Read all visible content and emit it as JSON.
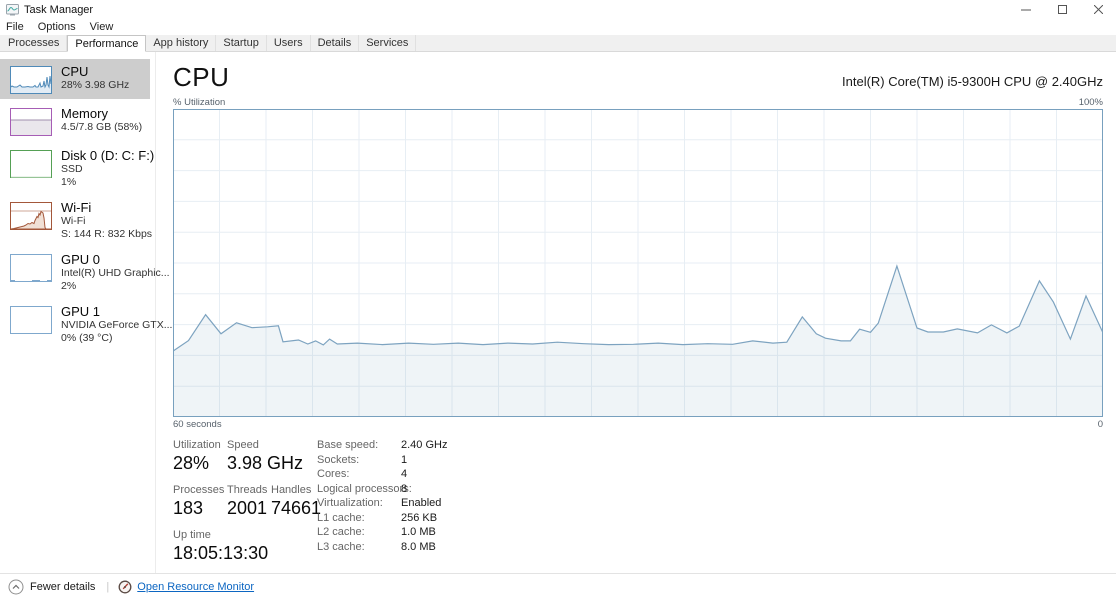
{
  "window": {
    "title": "Task Manager",
    "controls": {
      "minimize": "minimize",
      "maximize": "maximize",
      "close": "close"
    }
  },
  "menu": {
    "items": [
      {
        "label": "File"
      },
      {
        "label": "Options"
      },
      {
        "label": "View"
      }
    ]
  },
  "tabs": {
    "active": "Performance",
    "items": [
      {
        "label": "Processes"
      },
      {
        "label": "Performance"
      },
      {
        "label": "App history"
      },
      {
        "label": "Startup"
      },
      {
        "label": "Users"
      },
      {
        "label": "Details"
      },
      {
        "label": "Services"
      }
    ]
  },
  "sidebar": {
    "items": [
      {
        "title": "CPU",
        "lines": [
          "28% 3.98 GHz"
        ],
        "color": "#4f8ab8",
        "selected": true
      },
      {
        "title": "Memory",
        "lines": [
          "4.5/7.8 GB (58%)"
        ],
        "color": "#a65db5",
        "selected": false
      },
      {
        "title": "Disk 0 (D: C: F:)",
        "lines": [
          "SSD",
          "1%"
        ],
        "color": "#55a055",
        "selected": false
      },
      {
        "title": "Wi-Fi",
        "lines": [
          "Wi-Fi",
          "S: 144 R: 832 Kbps"
        ],
        "color": "#a3573a",
        "selected": false
      },
      {
        "title": "GPU 0",
        "lines": [
          "Intel(R) UHD Graphic...",
          "2%"
        ],
        "color": "#7fa8cd",
        "selected": false
      },
      {
        "title": "GPU 1",
        "lines": [
          "NVIDIA GeForce GTX...",
          "0% (39 °C)"
        ],
        "color": "#7fa8cd",
        "selected": false
      }
    ]
  },
  "main": {
    "title": "CPU",
    "processor": "Intel(R) Core(TM) i5-9300H CPU @ 2.40GHz",
    "y_label": "% Utilization",
    "y_max_label": "100%",
    "x_left_label": "60 seconds",
    "x_right_label": "0"
  },
  "stats": {
    "left": [
      {
        "label": "Utilization",
        "value": "28%"
      },
      {
        "label": "Speed",
        "value": "3.98 GHz"
      },
      {
        "label": "Processes",
        "value": "183"
      },
      {
        "label": "Threads",
        "value": "2001"
      },
      {
        "label": "Handles",
        "value": "74661"
      },
      {
        "label": "Up time",
        "value": "18:05:13:30"
      }
    ],
    "details": [
      {
        "label": "Base speed:",
        "value": "2.40 GHz"
      },
      {
        "label": "Sockets:",
        "value": "1"
      },
      {
        "label": "Cores:",
        "value": "4"
      },
      {
        "label": "Logical processors:",
        "value": "8"
      },
      {
        "label": "Virtualization:",
        "value": "Enabled"
      },
      {
        "label": "L1 cache:",
        "value": "256 KB"
      },
      {
        "label": "L2 cache:",
        "value": "1.0 MB"
      },
      {
        "label": "L3 cache:",
        "value": "8.0 MB"
      }
    ]
  },
  "footer": {
    "toggle_label": "Fewer details",
    "link_label": "Open Resource Monitor"
  },
  "chart_data": {
    "type": "area",
    "title": "CPU % Utilization over 60 seconds",
    "ylabel": "% Utilization",
    "ylim": [
      0,
      100
    ],
    "x_axis": {
      "left_label": "60 seconds",
      "right_label": "0",
      "span_seconds": 60
    },
    "grid": {
      "v_divisions": 20,
      "h_divisions": 10
    },
    "colors": {
      "border": "#78a0be",
      "line": "#7da3c0",
      "fill_opacity": 0.12,
      "gridline": "#e7eef4"
    },
    "series": [
      {
        "name": "CPU utilization (%)",
        "points": [
          [
            0,
            21.4
          ],
          [
            1,
            24.8
          ],
          [
            2.1,
            33.2
          ],
          [
            3.1,
            27
          ],
          [
            4.1,
            30.6
          ],
          [
            5.1,
            29
          ],
          [
            6.1,
            29.3
          ],
          [
            6.8,
            29.6
          ],
          [
            7.1,
            24.4
          ],
          [
            8.1,
            25
          ],
          [
            8.7,
            23.7
          ],
          [
            9.2,
            24.7
          ],
          [
            9.7,
            23.4
          ],
          [
            10.1,
            25.3
          ],
          [
            10.6,
            23.7
          ],
          [
            11.9,
            24
          ],
          [
            13.5,
            23.5
          ],
          [
            15.2,
            24
          ],
          [
            16.8,
            23.6
          ],
          [
            18.4,
            24
          ],
          [
            20,
            23.5
          ],
          [
            21.6,
            24
          ],
          [
            23.2,
            23.7
          ],
          [
            24.8,
            24.3
          ],
          [
            26.5,
            23.8
          ],
          [
            28.1,
            23.5
          ],
          [
            29.7,
            23.6
          ],
          [
            31.3,
            24
          ],
          [
            32.9,
            23.5
          ],
          [
            34.5,
            23.8
          ],
          [
            36.1,
            23.6
          ],
          [
            37.4,
            24.7
          ],
          [
            38.7,
            24
          ],
          [
            39.6,
            24.3
          ],
          [
            40.6,
            32.5
          ],
          [
            41.5,
            27
          ],
          [
            42.1,
            25.6
          ],
          [
            43.1,
            24.7
          ],
          [
            43.7,
            24.7
          ],
          [
            44.3,
            28.5
          ],
          [
            45,
            27.5
          ],
          [
            45.5,
            30.5
          ],
          [
            46.7,
            49
          ],
          [
            48,
            28.9
          ],
          [
            48.7,
            27.6
          ],
          [
            49.7,
            27.6
          ],
          [
            50.6,
            28.6
          ],
          [
            51.9,
            27.3
          ],
          [
            52.8,
            29.9
          ],
          [
            53.8,
            27.3
          ],
          [
            54.6,
            29.5
          ],
          [
            55.9,
            44.2
          ],
          [
            56.8,
            37.3
          ],
          [
            57.9,
            25.3
          ],
          [
            58.9,
            39.3
          ],
          [
            60,
            27.3
          ]
        ]
      }
    ]
  }
}
